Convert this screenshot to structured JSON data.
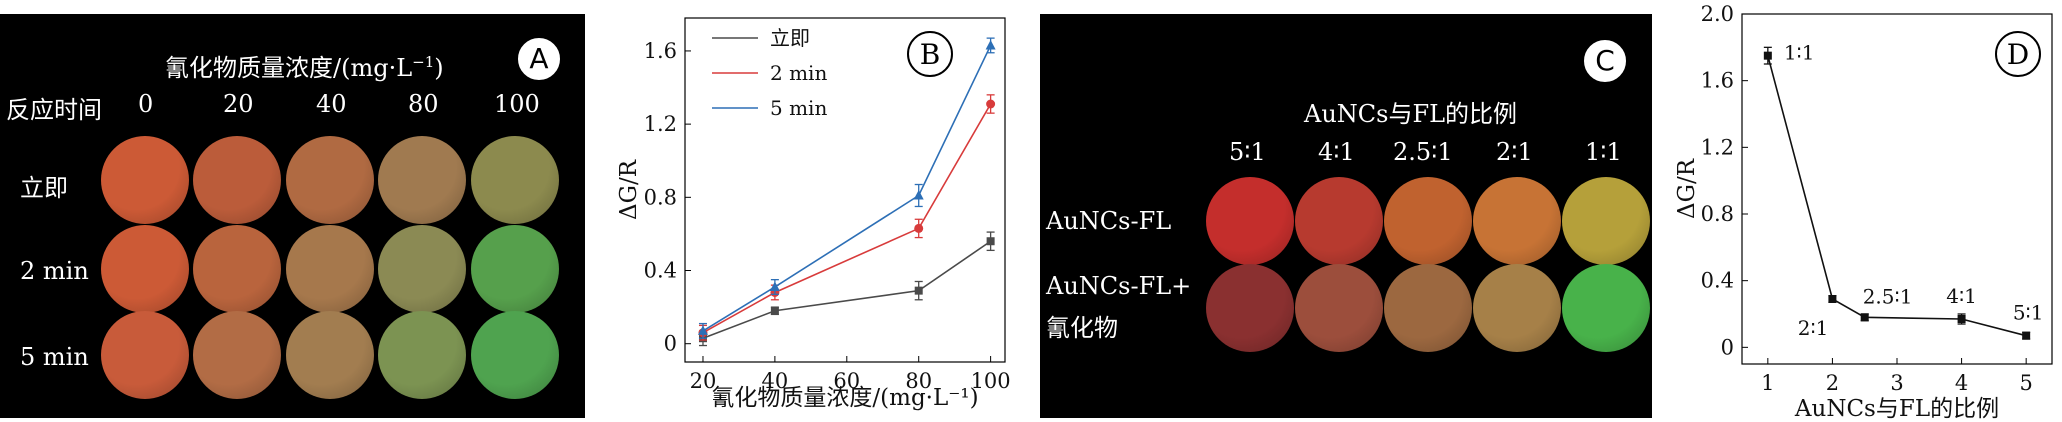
{
  "panelA": {
    "label": "A",
    "header": "氰化物质量浓度/(mg·L",
    "header_sup": "−1",
    "header_close": ")",
    "row_header": "反应时间",
    "columns": [
      "0",
      "20",
      "40",
      "80",
      "100"
    ],
    "rows": [
      {
        "label": "立即",
        "colors": [
          "#cc5a36",
          "#bb5c3a",
          "#b06a42",
          "#a07a50",
          "#8c8a4e"
        ]
      },
      {
        "label": "2 min",
        "colors": [
          "#cc5a36",
          "#b9643d",
          "#a6784c",
          "#8b8a54",
          "#56a04c"
        ]
      },
      {
        "label": "5 min",
        "colors": [
          "#c85b3a",
          "#b26c45",
          "#a27d50",
          "#7c9352",
          "#4fa34f"
        ]
      }
    ]
  },
  "panelC": {
    "label": "C",
    "header": "AuNCs与FL的比例",
    "columns": [
      "5∶1",
      "4∶1",
      "2.5∶1",
      "2∶1",
      "1∶1"
    ],
    "rows": [
      {
        "label_lines": [
          "AuNCs-FL"
        ],
        "colors": [
          "#c42e2c",
          "#b73a2f",
          "#c0622f",
          "#c77335",
          "#b5a03a"
        ]
      },
      {
        "label_lines": [
          "AuNCs-FL+",
          "氰化物"
        ],
        "colors": [
          "#8a3030",
          "#9c4e3c",
          "#9c6840",
          "#a68048",
          "#48b24a"
        ]
      }
    ]
  },
  "chart_data": [
    {
      "type": "line",
      "panel_label": "B",
      "xlabel": "氰化物质量浓度/(mg·L⁻¹)",
      "ylabel": "ΔG/R",
      "xlim": [
        15,
        104
      ],
      "ylim": [
        -0.1,
        1.78
      ],
      "xticks": [
        20,
        40,
        60,
        80,
        100
      ],
      "yticks": [
        0,
        0.4,
        0.8,
        1.2,
        1.6
      ],
      "x": [
        20,
        40,
        80,
        100
      ],
      "legend_position": "top-left",
      "series": [
        {
          "name": "立即",
          "color": "#4a4a4a",
          "marker": "square",
          "values": [
            0.03,
            0.18,
            0.29,
            0.56
          ],
          "errors": [
            0.04,
            0.02,
            0.05,
            0.05
          ]
        },
        {
          "name": "2 min",
          "color": "#d83b3b",
          "marker": "circle",
          "values": [
            0.06,
            0.28,
            0.63,
            1.31
          ],
          "errors": [
            0.04,
            0.04,
            0.05,
            0.05
          ]
        },
        {
          "name": "5 min",
          "color": "#2d6fb6",
          "marker": "triangle",
          "values": [
            0.07,
            0.31,
            0.81,
            1.63
          ],
          "errors": [
            0.04,
            0.04,
            0.06,
            0.04
          ]
        }
      ]
    },
    {
      "type": "line",
      "panel_label": "D",
      "xlabel": "AuNCs与FL的比例",
      "ylabel": "ΔG/R",
      "xlim": [
        0.6,
        5.4
      ],
      "ylim": [
        -0.1,
        2.0
      ],
      "xticks": [
        1,
        2,
        3,
        4,
        5
      ],
      "yticks": [
        0,
        0.4,
        0.8,
        1.2,
        1.6,
        2.0
      ],
      "ytick_labels": [
        "0",
        "0.4",
        "0.8",
        "1.2",
        "1.6",
        "2.0"
      ],
      "x": [
        1,
        2,
        2.5,
        4,
        5
      ],
      "values": [
        1.75,
        0.29,
        0.18,
        0.17,
        0.07
      ],
      "errors": [
        0.05,
        0.02,
        0.02,
        0.03,
        0.02
      ],
      "point_labels": [
        "1∶1",
        "2∶1",
        "2.5∶1",
        "4∶1",
        "5∶1"
      ],
      "color": "#111111"
    }
  ]
}
